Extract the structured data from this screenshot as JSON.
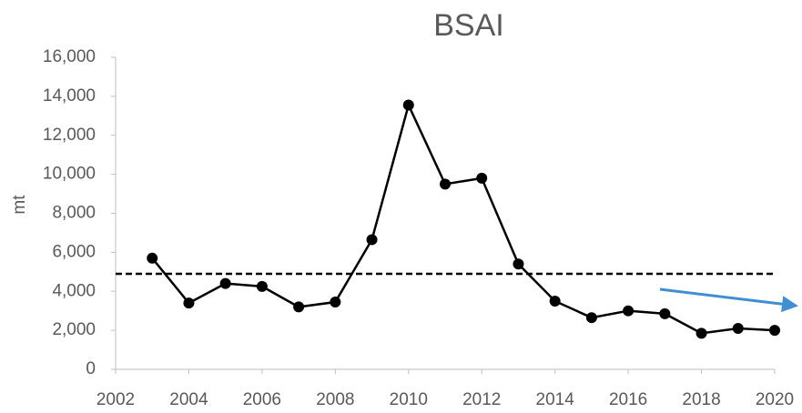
{
  "chart_data": {
    "type": "line",
    "title": "BSAI",
    "y_label": "mt",
    "x": [
      2003,
      2004,
      2005,
      2006,
      2007,
      2008,
      2009,
      2010,
      2011,
      2012,
      2013,
      2014,
      2015,
      2016,
      2017,
      2018,
      2019,
      2020
    ],
    "series": [
      {
        "color": "#000000",
        "values": [
          5700,
          3400,
          4400,
          4250,
          3200,
          3450,
          6650,
          13550,
          9500,
          9800,
          5400,
          3500,
          2650,
          3000,
          2850,
          1850,
          2100,
          2000
        ]
      }
    ],
    "reference_line": {
      "value": 4900,
      "style": "dashed",
      "color": "#000000"
    },
    "trend_arrow_color": "#3f8fd2",
    "xlim": [
      2002,
      2020
    ],
    "xticks": [
      2002,
      2004,
      2006,
      2008,
      2010,
      2012,
      2014,
      2016,
      2018,
      2020
    ],
    "ylim": [
      0,
      16000
    ],
    "yticks": [
      0,
      {
        "value": 2000,
        "label": "2,000"
      },
      {
        "value": 4000,
        "label": "4,000"
      },
      {
        "value": 6000,
        "label": "6,000"
      },
      {
        "value": 8000,
        "label": "8,000"
      },
      {
        "value": 10000,
        "label": "10,000"
      },
      {
        "value": 12000,
        "label": "12,000"
      },
      {
        "value": 14000,
        "label": "14,000"
      },
      {
        "value": 16000,
        "label": "16,000"
      }
    ],
    "grid": false
  }
}
